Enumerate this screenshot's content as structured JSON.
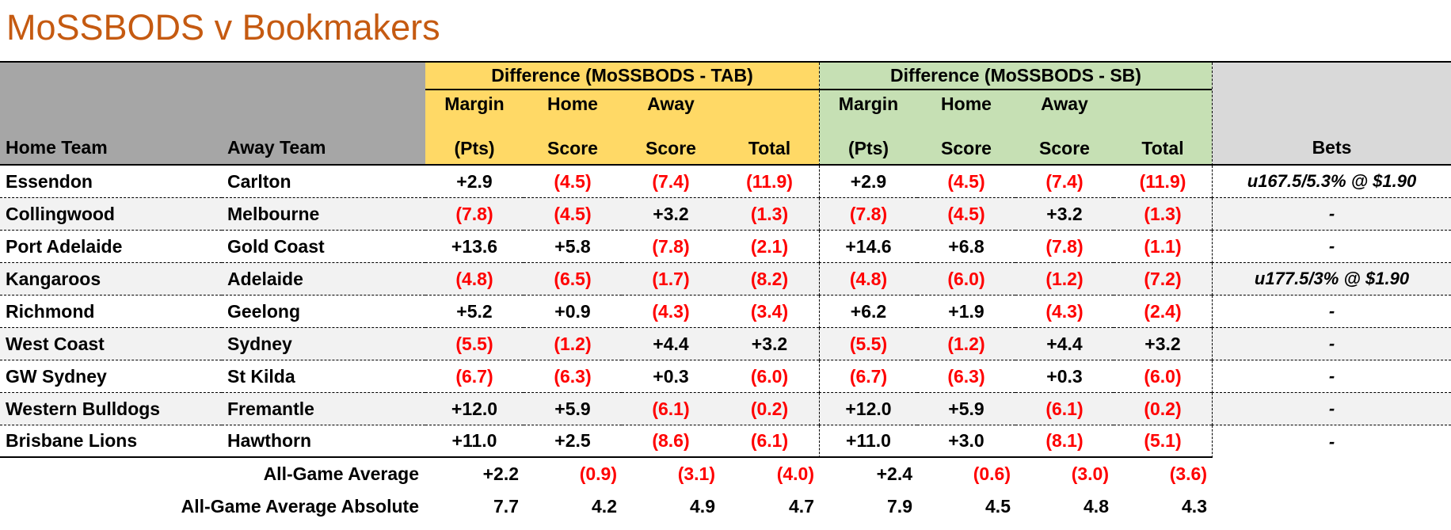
{
  "title": "MoSSBODS v Bookmakers",
  "chart_data": {
    "type": "table",
    "title": "MoSSBODS v Bookmakers",
    "group_headers": [
      {
        "label": "Difference (MoSSBODS - TAB)",
        "color": "#FFD966"
      },
      {
        "label": "Difference (MoSSBODS - SB)",
        "color": "#C6E0B4"
      }
    ],
    "columns": {
      "home_team": "Home Team",
      "away_team": "Away Team",
      "metric_top": [
        "Margin",
        "Home",
        "Away",
        ""
      ],
      "metric_bottom": [
        "(Pts)",
        "Score",
        "Score",
        "Total"
      ],
      "bets": "Bets"
    },
    "negative_format": "values in parentheses are negative and shown in red",
    "rows": [
      {
        "home": "Essendon",
        "away": "Carlton",
        "tab": [
          "+2.9",
          "(4.5)",
          "(7.4)",
          "(11.9)"
        ],
        "sb": [
          "+2.9",
          "(4.5)",
          "(7.4)",
          "(11.9)"
        ],
        "bets": "u167.5/5.3% @ $1.90"
      },
      {
        "home": "Collingwood",
        "away": "Melbourne",
        "tab": [
          "(7.8)",
          "(4.5)",
          "+3.2",
          "(1.3)"
        ],
        "sb": [
          "(7.8)",
          "(4.5)",
          "+3.2",
          "(1.3)"
        ],
        "bets": "-"
      },
      {
        "home": "Port Adelaide",
        "away": "Gold Coast",
        "tab": [
          "+13.6",
          "+5.8",
          "(7.8)",
          "(2.1)"
        ],
        "sb": [
          "+14.6",
          "+6.8",
          "(7.8)",
          "(1.1)"
        ],
        "bets": "-"
      },
      {
        "home": "Kangaroos",
        "away": "Adelaide",
        "tab": [
          "(4.8)",
          "(6.5)",
          "(1.7)",
          "(8.2)"
        ],
        "sb": [
          "(4.8)",
          "(6.0)",
          "(1.2)",
          "(7.2)"
        ],
        "bets": "u177.5/3% @ $1.90"
      },
      {
        "home": "Richmond",
        "away": "Geelong",
        "tab": [
          "+5.2",
          "+0.9",
          "(4.3)",
          "(3.4)"
        ],
        "sb": [
          "+6.2",
          "+1.9",
          "(4.3)",
          "(2.4)"
        ],
        "bets": "-"
      },
      {
        "home": "West Coast",
        "away": "Sydney",
        "tab": [
          "(5.5)",
          "(1.2)",
          "+4.4",
          "+3.2"
        ],
        "sb": [
          "(5.5)",
          "(1.2)",
          "+4.4",
          "+3.2"
        ],
        "bets": "-"
      },
      {
        "home": "GW Sydney",
        "away": "St Kilda",
        "tab": [
          "(6.7)",
          "(6.3)",
          "+0.3",
          "(6.0)"
        ],
        "sb": [
          "(6.7)",
          "(6.3)",
          "+0.3",
          "(6.0)"
        ],
        "bets": "-"
      },
      {
        "home": "Western Bulldogs",
        "away": "Fremantle",
        "tab": [
          "+12.0",
          "+5.9",
          "(6.1)",
          "(0.2)"
        ],
        "sb": [
          "+12.0",
          "+5.9",
          "(6.1)",
          "(0.2)"
        ],
        "bets": "-"
      },
      {
        "home": "Brisbane Lions",
        "away": "Hawthorn",
        "tab": [
          "+11.0",
          "+2.5",
          "(8.6)",
          "(6.1)"
        ],
        "sb": [
          "+11.0",
          "+3.0",
          "(8.1)",
          "(5.1)"
        ],
        "bets": "-"
      }
    ],
    "footer_rows": [
      {
        "label": "All-Game Average",
        "tab": [
          "+2.2",
          "(0.9)",
          "(3.1)",
          "(4.0)"
        ],
        "sb": [
          "+2.4",
          "(0.6)",
          "(3.0)",
          "(3.6)"
        ]
      },
      {
        "label": "All-Game Average Absolute",
        "tab": [
          "7.7",
          "4.2",
          "4.9",
          "4.7"
        ],
        "sb": [
          "7.9",
          "4.5",
          "4.8",
          "4.3"
        ]
      }
    ]
  },
  "colors": {
    "title_orange": "#C55A11",
    "header_gray": "#A6A6A6",
    "tab_yellow": "#FFD966",
    "sb_green": "#C6E0B4",
    "bets_gray": "#D9D9D9",
    "row_band": "#F2F2F2",
    "negative_red": "#FF0000",
    "border_black": "#000000"
  }
}
